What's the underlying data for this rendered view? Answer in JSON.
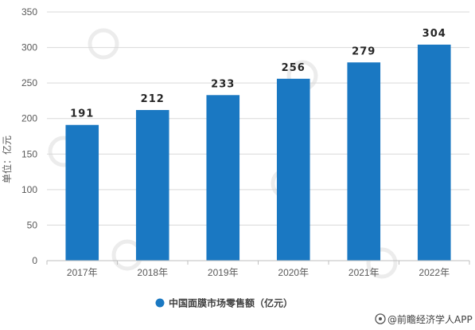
{
  "chart_data": {
    "type": "bar",
    "categories": [
      "2017年",
      "2018年",
      "2019年",
      "2020年",
      "2021年",
      "2022年"
    ],
    "series": [
      {
        "name": "中国面膜市场零售额（亿元）",
        "values": [
          191,
          212,
          233,
          256,
          279,
          304
        ]
      }
    ],
    "ylabel": "单位：亿元",
    "ylim": [
      0,
      350
    ],
    "yticks": [
      0,
      50,
      100,
      150,
      200,
      250,
      300,
      350
    ],
    "grid": true,
    "legend_position": "bottom-center",
    "bar_color": "#1A78C2"
  },
  "footer": {
    "source": "@前瞻经济学人APP"
  }
}
